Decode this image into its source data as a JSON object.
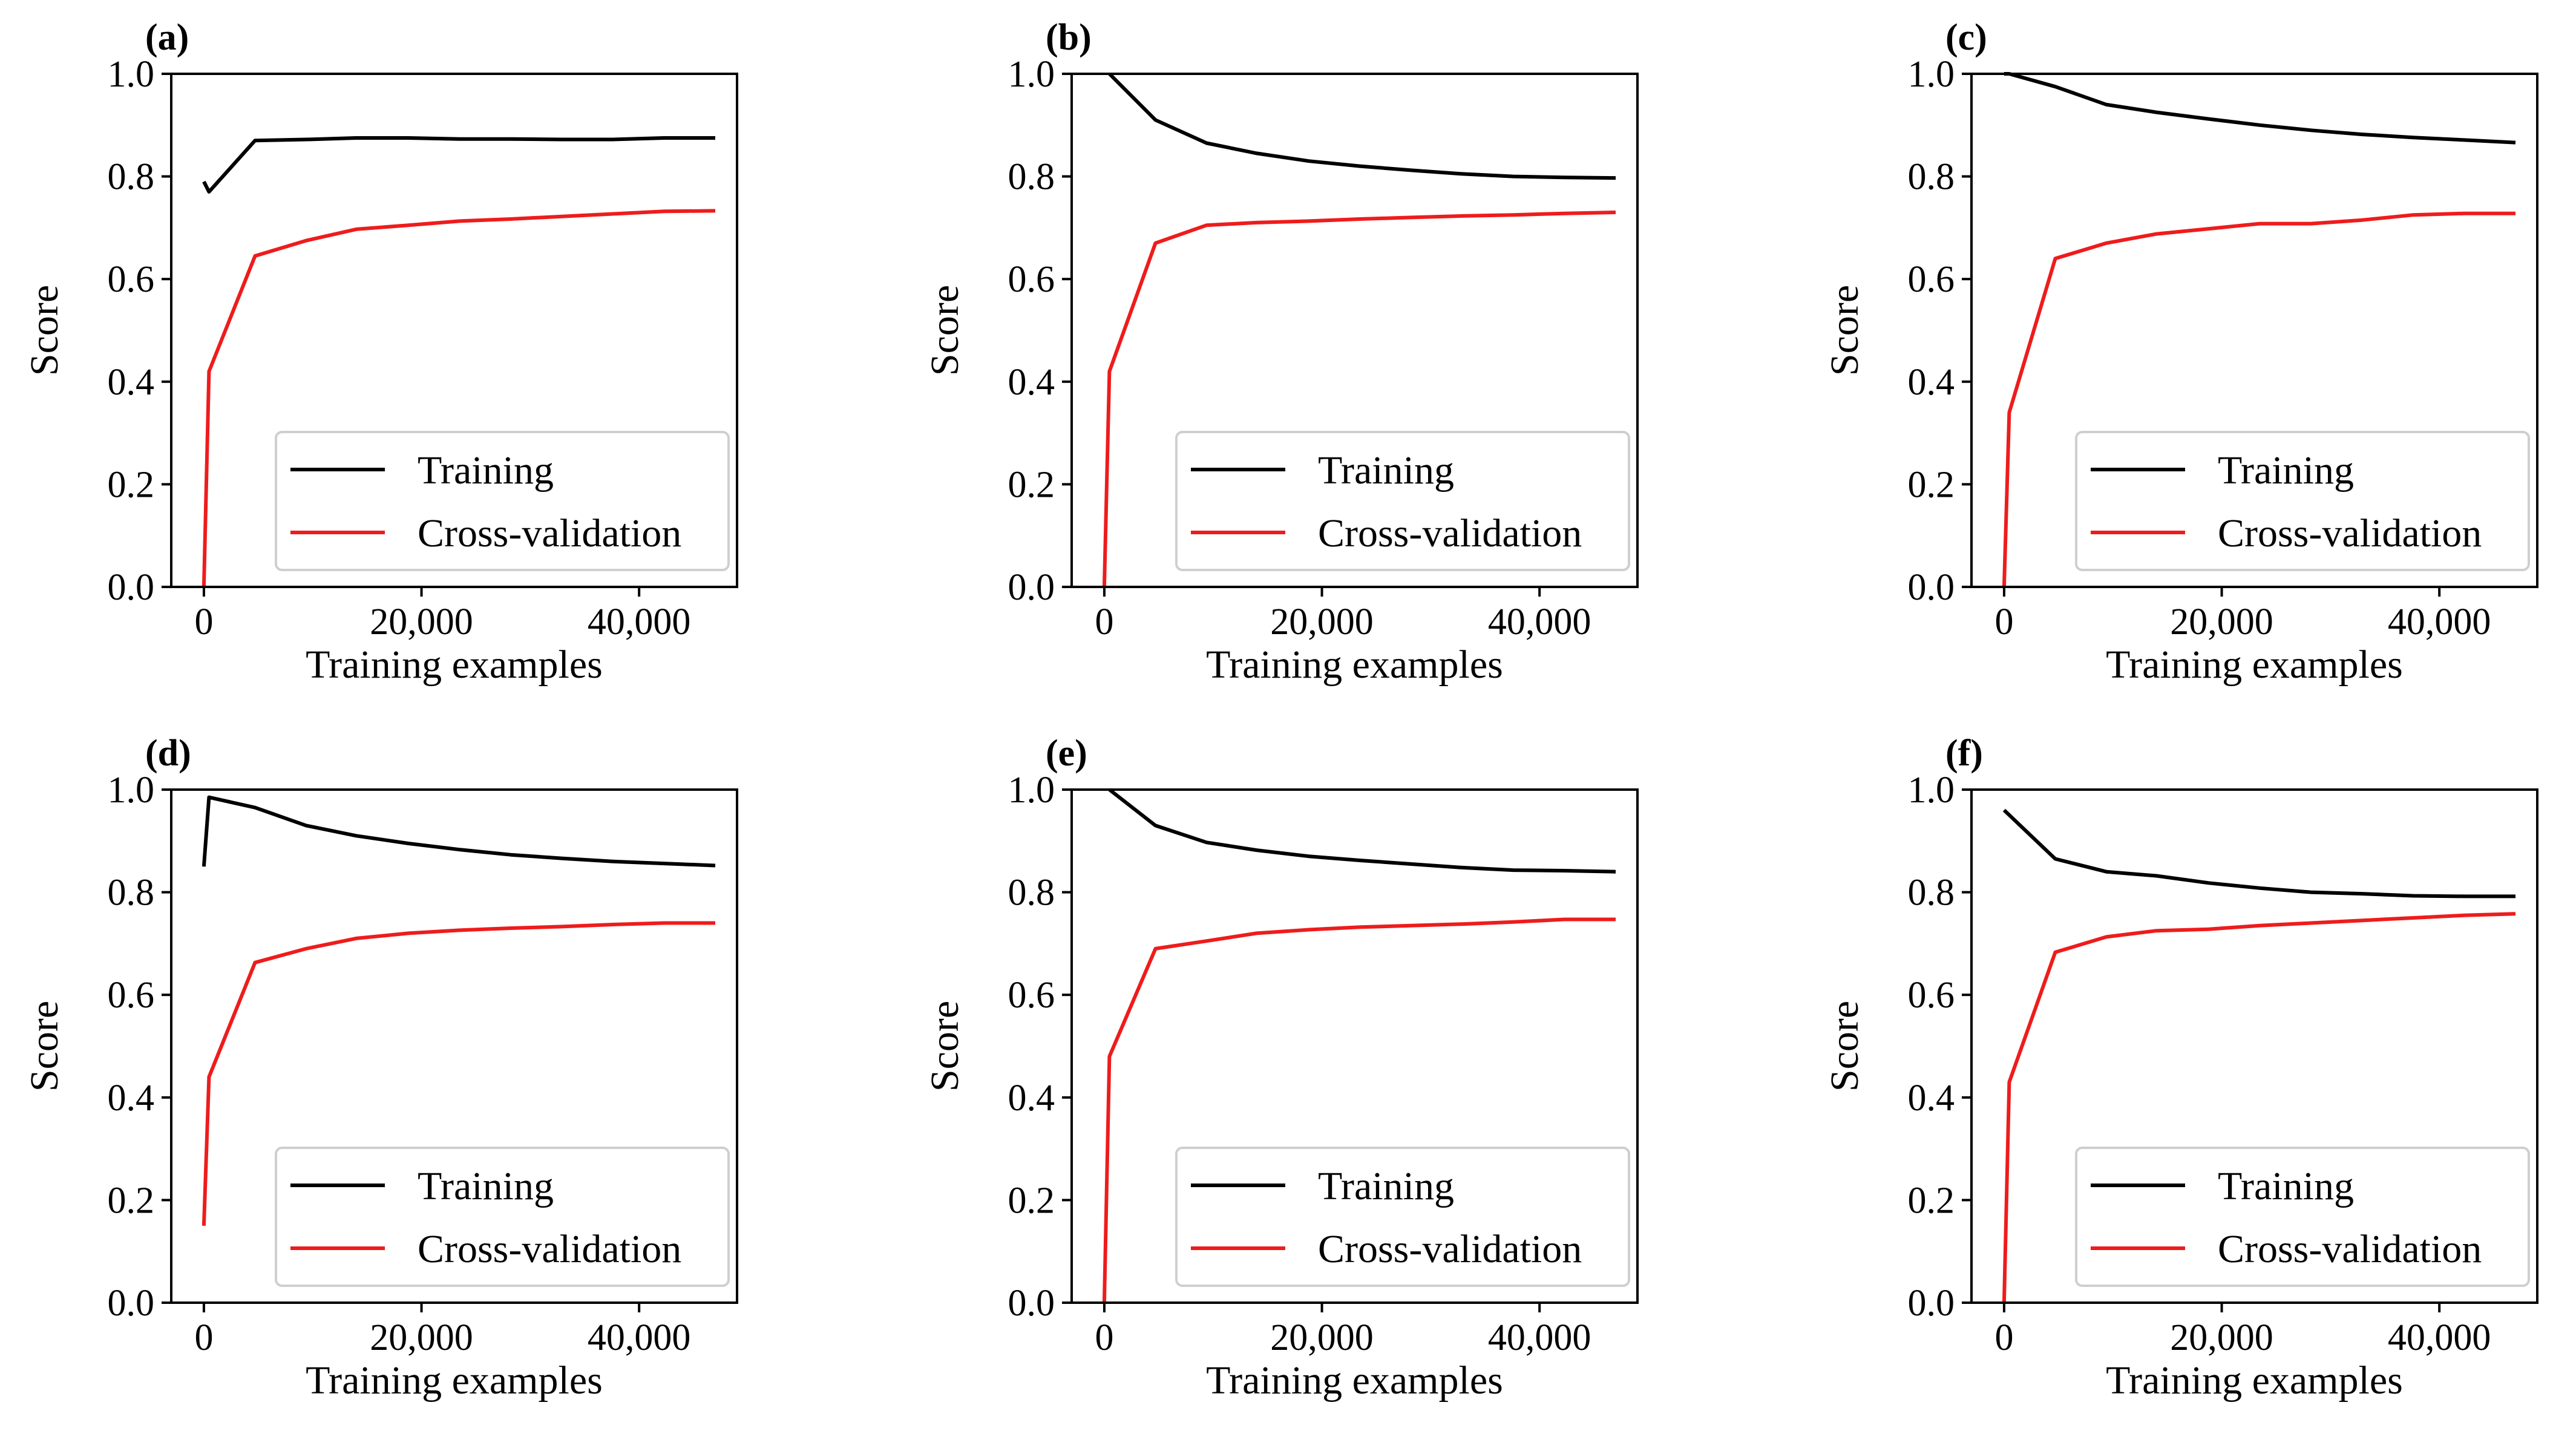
{
  "chart_data": [
    {
      "type": "line",
      "panel_label": "(a)",
      "xlabel": "Training examples",
      "ylabel": "Score",
      "xlim": [
        -3000,
        49000
      ],
      "ylim": [
        0.0,
        1.0
      ],
      "xticks": [
        0,
        20000,
        40000
      ],
      "xtick_labels": [
        "0",
        "20,000",
        "40,000"
      ],
      "yticks": [
        0.0,
        0.2,
        0.4,
        0.6,
        0.8,
        1.0
      ],
      "ytick_labels": [
        "0.0",
        "0.2",
        "0.4",
        "0.6",
        "0.8",
        "1.0"
      ],
      "legend_position": "lower-right",
      "series": [
        {
          "name": "Training",
          "color": "#000000",
          "x": [
            0,
            470,
            4700,
            9400,
            14000,
            18800,
            23500,
            28200,
            32900,
            37600,
            42300,
            47000
          ],
          "y": [
            0.79,
            0.77,
            0.87,
            0.872,
            0.875,
            0.875,
            0.873,
            0.873,
            0.872,
            0.872,
            0.875,
            0.875
          ]
        },
        {
          "name": "Cross-validation",
          "color": "#ee1c1c",
          "x": [
            0,
            470,
            4700,
            9400,
            14000,
            18800,
            23500,
            28200,
            32900,
            37600,
            42300,
            47000
          ],
          "y": [
            0.0,
            0.42,
            0.645,
            0.675,
            0.697,
            0.705,
            0.713,
            0.717,
            0.722,
            0.727,
            0.732,
            0.733
          ]
        }
      ]
    },
    {
      "type": "line",
      "panel_label": "(b)",
      "xlabel": "Training examples",
      "ylabel": "Score",
      "xlim": [
        -3000,
        49000
      ],
      "ylim": [
        0.0,
        1.0
      ],
      "xticks": [
        0,
        20000,
        40000
      ],
      "xtick_labels": [
        "0",
        "20,000",
        "40,000"
      ],
      "yticks": [
        0.0,
        0.2,
        0.4,
        0.6,
        0.8,
        1.0
      ],
      "ytick_labels": [
        "0.0",
        "0.2",
        "0.4",
        "0.6",
        "0.8",
        "1.0"
      ],
      "legend_position": "lower-right",
      "series": [
        {
          "name": "Training",
          "color": "#000000",
          "x": [
            470,
            4700,
            9400,
            14000,
            18800,
            23500,
            28200,
            32900,
            37600,
            42300,
            47000
          ],
          "y": [
            1.0,
            0.91,
            0.865,
            0.845,
            0.83,
            0.82,
            0.812,
            0.805,
            0.8,
            0.798,
            0.797
          ]
        },
        {
          "name": "Cross-validation",
          "color": "#ee1c1c",
          "x": [
            0,
            470,
            4700,
            9400,
            14000,
            18800,
            23500,
            28200,
            32900,
            37600,
            42300,
            47000
          ],
          "y": [
            0.0,
            0.42,
            0.67,
            0.705,
            0.71,
            0.713,
            0.717,
            0.72,
            0.723,
            0.725,
            0.728,
            0.73
          ]
        }
      ]
    },
    {
      "type": "line",
      "panel_label": "(c)",
      "xlabel": "Training examples",
      "ylabel": "Score",
      "xlim": [
        -3000,
        49000
      ],
      "ylim": [
        0.0,
        1.0
      ],
      "xticks": [
        0,
        20000,
        40000
      ],
      "xtick_labels": [
        "0",
        "20,000",
        "40,000"
      ],
      "yticks": [
        0.0,
        0.2,
        0.4,
        0.6,
        0.8,
        1.0
      ],
      "ytick_labels": [
        "0.0",
        "0.2",
        "0.4",
        "0.6",
        "0.8",
        "1.0"
      ],
      "legend_position": "lower-right",
      "series": [
        {
          "name": "Training",
          "color": "#000000",
          "x": [
            0,
            470,
            4700,
            9400,
            14000,
            18800,
            23500,
            28200,
            32900,
            37600,
            42300,
            47000
          ],
          "y": [
            1.0,
            1.0,
            0.975,
            0.94,
            0.925,
            0.912,
            0.9,
            0.89,
            0.882,
            0.876,
            0.871,
            0.866
          ]
        },
        {
          "name": "Cross-validation",
          "color": "#ee1c1c",
          "x": [
            0,
            470,
            4700,
            9400,
            14000,
            18800,
            23500,
            28200,
            32900,
            37600,
            42300,
            47000
          ],
          "y": [
            0.0,
            0.34,
            0.64,
            0.67,
            0.688,
            0.698,
            0.708,
            0.708,
            0.715,
            0.725,
            0.728,
            0.728
          ]
        }
      ]
    },
    {
      "type": "line",
      "panel_label": "(d)",
      "xlabel": "Training examples",
      "ylabel": "Score",
      "xlim": [
        -3000,
        49000
      ],
      "ylim": [
        0.0,
        1.0
      ],
      "xticks": [
        0,
        20000,
        40000
      ],
      "xtick_labels": [
        "0",
        "20,000",
        "40,000"
      ],
      "yticks": [
        0.0,
        0.2,
        0.4,
        0.6,
        0.8,
        1.0
      ],
      "ytick_labels": [
        "0.0",
        "0.2",
        "0.4",
        "0.6",
        "0.8",
        "1.0"
      ],
      "legend_position": "lower-right",
      "series": [
        {
          "name": "Training",
          "color": "#000000",
          "x": [
            0,
            470,
            4700,
            9400,
            14000,
            18800,
            23500,
            28200,
            32900,
            37600,
            42300,
            47000
          ],
          "y": [
            0.85,
            0.985,
            0.965,
            0.93,
            0.91,
            0.895,
            0.883,
            0.873,
            0.866,
            0.86,
            0.856,
            0.852
          ]
        },
        {
          "name": "Cross-validation",
          "color": "#ee1c1c",
          "x": [
            0,
            470,
            4700,
            9400,
            14000,
            18800,
            23500,
            28200,
            32900,
            37600,
            42300,
            47000
          ],
          "y": [
            0.15,
            0.44,
            0.663,
            0.69,
            0.71,
            0.72,
            0.726,
            0.73,
            0.733,
            0.737,
            0.74,
            0.74
          ]
        }
      ]
    },
    {
      "type": "line",
      "panel_label": "(e)",
      "xlabel": "Training examples",
      "ylabel": "Score",
      "xlim": [
        -3000,
        49000
      ],
      "ylim": [
        0.0,
        1.0
      ],
      "xticks": [
        0,
        20000,
        40000
      ],
      "xtick_labels": [
        "0",
        "20,000",
        "40,000"
      ],
      "yticks": [
        0.0,
        0.2,
        0.4,
        0.6,
        0.8,
        1.0
      ],
      "ytick_labels": [
        "0.0",
        "0.2",
        "0.4",
        "0.6",
        "0.8",
        "1.0"
      ],
      "legend_position": "lower-right",
      "series": [
        {
          "name": "Training",
          "color": "#000000",
          "x": [
            470,
            4700,
            9400,
            14000,
            18800,
            23500,
            28200,
            32900,
            37600,
            42300,
            47000
          ],
          "y": [
            1.0,
            0.93,
            0.897,
            0.882,
            0.87,
            0.862,
            0.855,
            0.848,
            0.843,
            0.842,
            0.84
          ]
        },
        {
          "name": "Cross-validation",
          "color": "#ee1c1c",
          "x": [
            0,
            470,
            4700,
            9400,
            14000,
            18800,
            23500,
            28200,
            32900,
            37600,
            42300,
            47000
          ],
          "y": [
            0.0,
            0.48,
            0.69,
            0.705,
            0.72,
            0.727,
            0.732,
            0.735,
            0.738,
            0.742,
            0.747,
            0.747
          ]
        }
      ]
    },
    {
      "type": "line",
      "panel_label": "(f)",
      "xlabel": "Training examples",
      "ylabel": "Score",
      "xlim": [
        -3000,
        49000
      ],
      "ylim": [
        0.0,
        1.0
      ],
      "xticks": [
        0,
        20000,
        40000
      ],
      "xtick_labels": [
        "0",
        "20,000",
        "40,000"
      ],
      "yticks": [
        0.0,
        0.2,
        0.4,
        0.6,
        0.8,
        1.0
      ],
      "ytick_labels": [
        "0.0",
        "0.2",
        "0.4",
        "0.6",
        "0.8",
        "1.0"
      ],
      "legend_position": "lower-right",
      "series": [
        {
          "name": "Training",
          "color": "#000000",
          "x": [
            0,
            4700,
            9400,
            14000,
            18800,
            23500,
            28200,
            32900,
            37600,
            42300,
            47000
          ],
          "y": [
            0.96,
            0.865,
            0.84,
            0.832,
            0.818,
            0.808,
            0.8,
            0.797,
            0.793,
            0.792,
            0.792
          ]
        },
        {
          "name": "Cross-validation",
          "color": "#ee1c1c",
          "x": [
            0,
            470,
            4700,
            9400,
            14000,
            18800,
            23500,
            28200,
            32900,
            37600,
            42300,
            47000
          ],
          "y": [
            0.0,
            0.43,
            0.683,
            0.713,
            0.725,
            0.728,
            0.735,
            0.74,
            0.745,
            0.75,
            0.755,
            0.758
          ]
        }
      ]
    }
  ]
}
